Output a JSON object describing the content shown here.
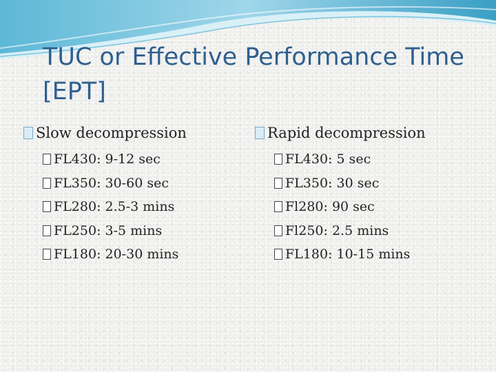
{
  "slide": {
    "title": "TUC or Effective Performance Time [EPT]",
    "left": {
      "heading": "Slow decompression",
      "items": [
        "FL430: 9-12 sec",
        "FL350: 30-60 sec",
        "FL280: 2.5-3 mins",
        "FL250: 3-5 mins",
        "FL180: 20-30 mins"
      ]
    },
    "right": {
      "heading": "Rapid decompression",
      "items": [
        "FL430: 5 sec",
        "FL350: 30 sec",
        "Fl280: 90 sec",
        "Fl250: 2.5 mins",
        "FL180: 10-15 mins"
      ]
    }
  },
  "colors": {
    "title": "#2f5f8f",
    "banner_dark": "#3a9fc4",
    "banner_light": "#bfe6f3"
  }
}
